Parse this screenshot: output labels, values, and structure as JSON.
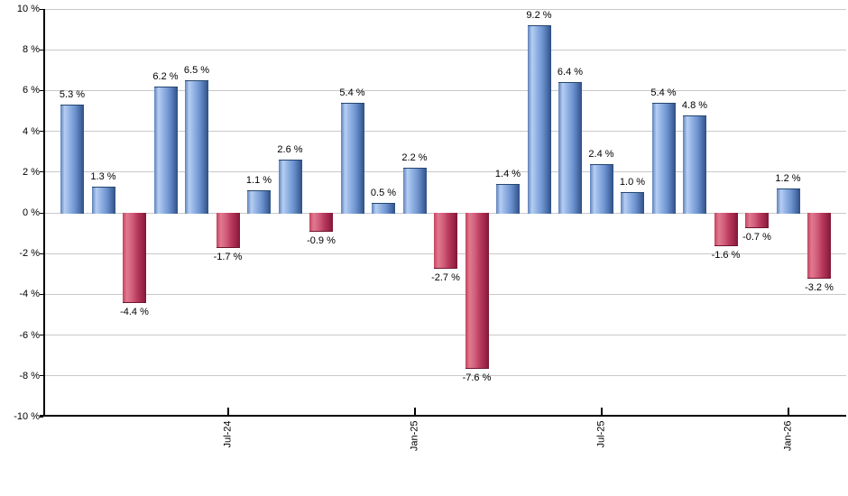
{
  "chart_data": {
    "type": "bar",
    "title": "",
    "xlabel": "",
    "ylabel": "",
    "values": [
      5.3,
      1.3,
      -4.4,
      6.2,
      6.5,
      -1.7,
      1.1,
      2.6,
      -0.9,
      5.4,
      0.5,
      2.2,
      -2.7,
      -7.6,
      1.4,
      9.2,
      6.4,
      2.4,
      1.0,
      5.4,
      4.8,
      -1.6,
      -0.7,
      1.2,
      -3.2
    ],
    "bar_labels": [
      "5.3 %",
      "1.3 %",
      "-4.4 %",
      "6.2 %",
      "6.5 %",
      "-1.7 %",
      "1.1 %",
      "2.6 %",
      "-0.9 %",
      "5.4 %",
      "0.5 %",
      "2.2 %",
      "-2.7 %",
      "-7.6 %",
      "1.4 %",
      "9.2 %",
      "6.4 %",
      "2.4 %",
      "1.0 %",
      "5.4 %",
      "4.8 %",
      "-1.6 %",
      "-0.7 %",
      "1.2 %",
      "-3.2 %"
    ],
    "x_axis": {
      "tick_labels": [
        "Jul-24",
        "Jan-25",
        "Jul-25",
        "Jan-26"
      ],
      "tick_bar_indices": [
        5,
        11,
        17,
        23
      ]
    },
    "y_axis": {
      "min": -10,
      "max": 10,
      "step": 2,
      "unit": "%",
      "tick_labels": [
        "10 %",
        "8 %",
        "6 %",
        "4 %",
        "2 %",
        "0 %",
        "-2 %",
        "-4 %",
        "-6 %",
        "-8 %",
        "-10 %"
      ]
    },
    "grid": true,
    "legend": "none",
    "colors": {
      "positive_bar_highlight": "#b6cef3",
      "positive_bar_edge": "#2e4f82",
      "negative_bar_highlight": "#e2798f",
      "negative_bar_edge": "#7f1737",
      "gridline": "#c9c9c9",
      "axis": "#000000",
      "text": "#000000",
      "background": "#ffffff"
    }
  }
}
